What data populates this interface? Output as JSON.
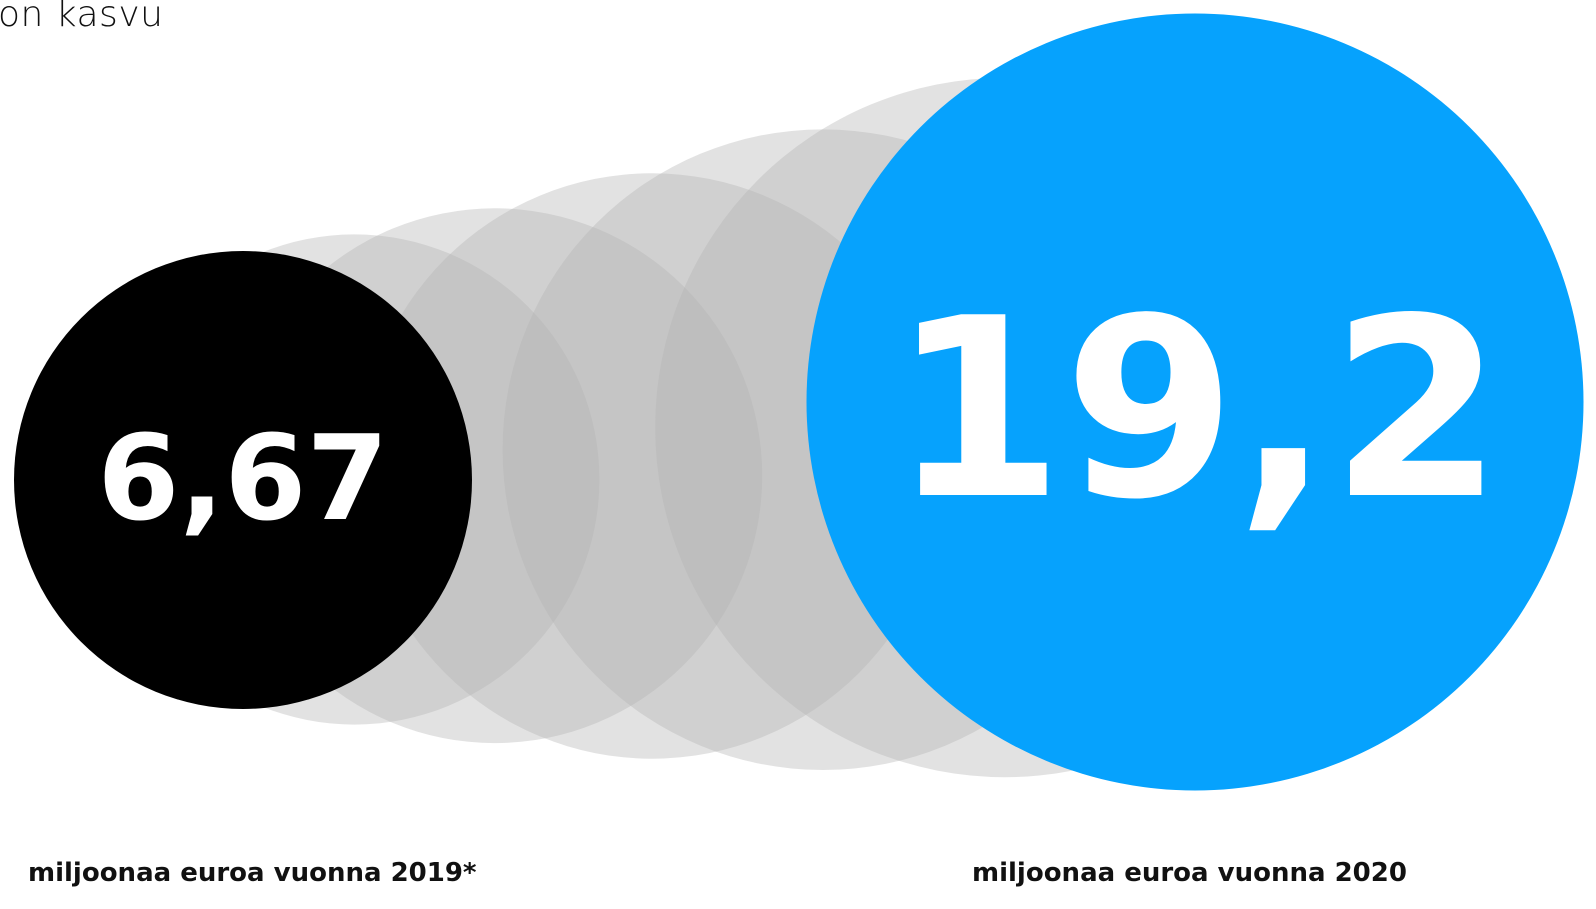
{
  "header": {
    "title_fragment": "on kasvu"
  },
  "colors": {
    "start": "#000000",
    "end": "#06a2fd",
    "ghost": "#b4b4b4",
    "label": "#ffffff"
  },
  "chart_data": {
    "type": "bubble-growth",
    "title": "",
    "points": [
      {
        "value": 6.67,
        "label": "6,67",
        "caption": "miljoonaa euroa vuonna 2019*",
        "role": "start"
      },
      {
        "value": 19.2,
        "label": "19,2",
        "caption": "miljoonaa euroa vuonna 2020",
        "role": "end"
      }
    ]
  }
}
